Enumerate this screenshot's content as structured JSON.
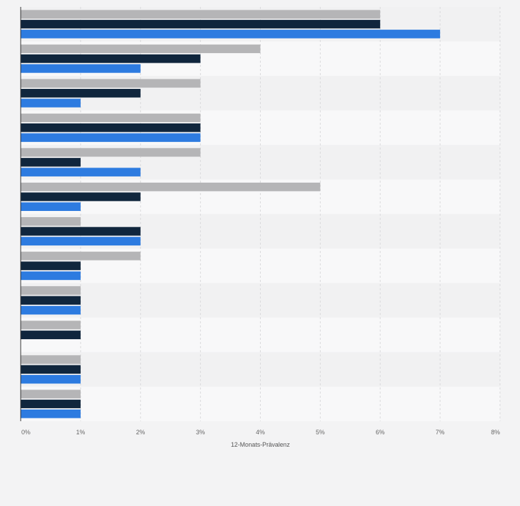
{
  "chart_data": {
    "type": "bar",
    "orientation": "horizontal",
    "categories": [
      "",
      "",
      "",
      "",
      "",
      "",
      "",
      "",
      "",
      "",
      "",
      ""
    ],
    "series": [
      {
        "color": "#b5b5b7",
        "values": [
          6,
          4,
          3,
          3,
          3,
          5,
          1,
          2,
          1,
          1,
          1,
          1
        ]
      },
      {
        "color": "#10263d",
        "values": [
          6,
          3,
          2,
          3,
          1,
          2,
          2,
          1,
          1,
          1,
          1,
          1
        ]
      },
      {
        "color": "#2d7be0",
        "values": [
          7,
          2,
          1,
          3,
          2,
          1,
          2,
          1,
          1,
          0,
          1,
          1
        ]
      }
    ],
    "xlabel": "12-Monats-Prävalenz",
    "ylabel": "",
    "xlim": [
      0,
      8
    ],
    "xticks": [
      "0%",
      "1%",
      "2%",
      "3%",
      "4%",
      "5%",
      "6%",
      "7%",
      "8%"
    ],
    "grid": true,
    "legend": "none"
  }
}
